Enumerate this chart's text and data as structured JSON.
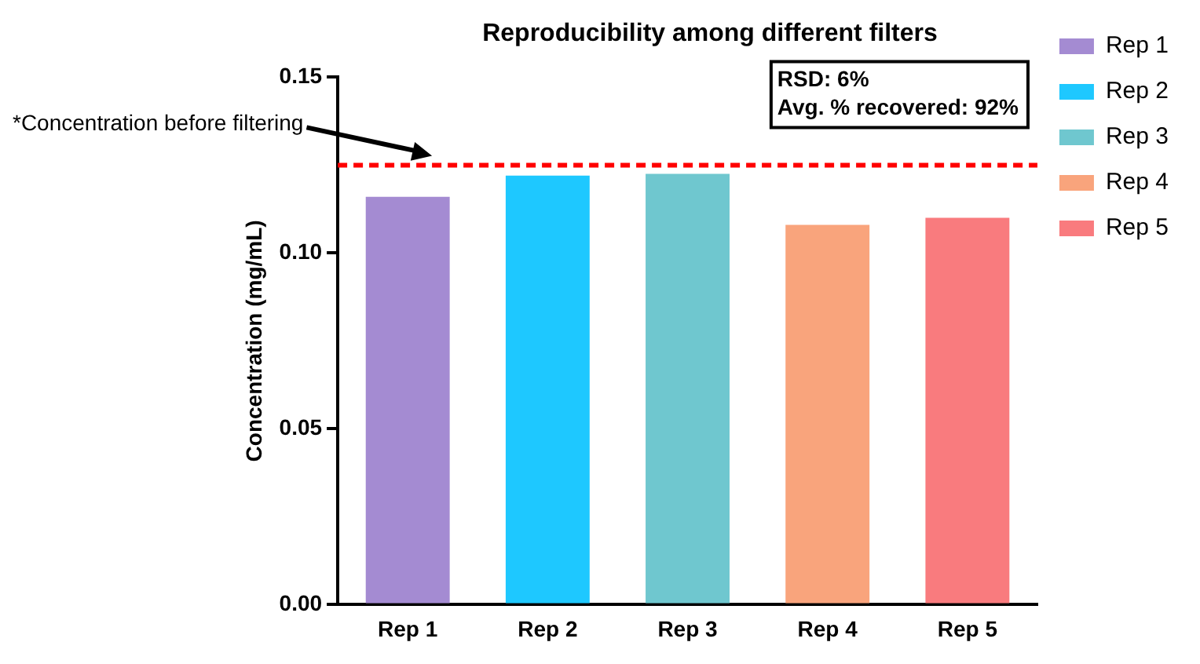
{
  "chart_data": {
    "type": "bar",
    "title": "Reproducibility among different filters",
    "ylabel": "Concentration (mg/mL)",
    "categories": [
      "Rep 1",
      "Rep 2",
      "Rep 3",
      "Rep 4",
      "Rep 5"
    ],
    "series": [
      {
        "name": "Rep 1",
        "color": "#a48bd2",
        "values": [
          0.116,
          null,
          null,
          null,
          null
        ]
      },
      {
        "name": "Rep 2",
        "color": "#1ec8ff",
        "values": [
          null,
          0.122,
          null,
          null,
          null
        ]
      },
      {
        "name": "Rep 3",
        "color": "#6fc7cf",
        "values": [
          null,
          null,
          0.1225,
          null,
          null
        ]
      },
      {
        "name": "Rep 4",
        "color": "#f9a47c",
        "values": [
          null,
          null,
          null,
          0.108,
          null
        ]
      },
      {
        "name": "Rep 5",
        "color": "#f97b7e",
        "values": [
          null,
          null,
          null,
          null,
          0.11
        ]
      }
    ],
    "ylim": [
      0,
      0.15
    ],
    "yticks": [
      {
        "value": 0,
        "label": "0.00"
      },
      {
        "value": 0.05,
        "label": "0.05"
      },
      {
        "value": 0.1,
        "label": "0.10"
      },
      {
        "value": 0.15,
        "label": "0.15"
      }
    ],
    "ref_lines": [
      {
        "axis": "y",
        "value": 0.125,
        "label": "*Concentration before filtering",
        "color": "#ff0000",
        "line_style": "dashed"
      }
    ],
    "annotations": [
      "RSD: 6%",
      "Avg. % recovered: 92%"
    ],
    "grid": false,
    "legend": "right"
  }
}
